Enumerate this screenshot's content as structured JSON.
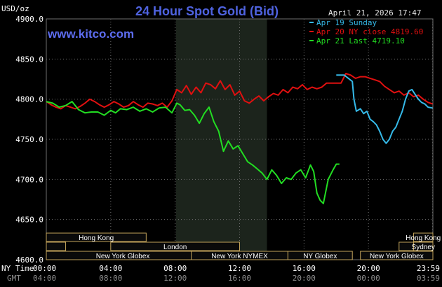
{
  "header": {
    "unit_label": "USD/oz",
    "title": "24 Hour Spot Gold (Bid)",
    "datetime": "April 21, 2026 17:47",
    "brand": "www.kitco.com"
  },
  "time_row_labels": {
    "ny": "NY Time",
    "gmt": "GMT"
  },
  "colors": {
    "background": "#000000",
    "grid": "#6e6e6e",
    "highlight_band": "#1c241c",
    "series_sunday": "#35b9e8",
    "series_nyclose": "#e01010",
    "series_last": "#22dd22",
    "market_box_fill": "#0a0a0a",
    "market_box_stroke": "#c2a35a",
    "title": "#4f63e0"
  },
  "markets": [
    {
      "name": "Hong Kong",
      "start": 0,
      "end": 6.2,
      "row": 0
    },
    {
      "name": "",
      "start": 0,
      "end": 1.2,
      "row": 1
    },
    {
      "name": "London",
      "start": 4.0,
      "end": 12.0,
      "row": 1
    },
    {
      "name": "New York Globex",
      "start": 0,
      "end": 9.5,
      "row": 2
    },
    {
      "name": "New York NYMEX",
      "start": 9.0,
      "end": 15.0,
      "row": 2
    },
    {
      "name": "NY Globex",
      "start": 15.0,
      "end": 19.0,
      "row": 2
    },
    {
      "name": "Hong Kong",
      "start": 22.8,
      "end": 24.0,
      "row": 0
    },
    {
      "name": "",
      "start": 21.9,
      "end": 22.8,
      "row": 1
    },
    {
      "name": "Sydney",
      "start": 22.8,
      "end": 24.0,
      "row": 1
    },
    {
      "name": "New York Globex",
      "start": 19.5,
      "end": 24.0,
      "row": 2
    }
  ],
  "chart_data": {
    "type": "line",
    "title": "24 Hour Spot Gold (Bid)",
    "ylabel": "USD/oz",
    "ylim": [
      4600,
      4900
    ],
    "yticks": [
      4600.0,
      4650.0,
      4700.0,
      4750.0,
      4800.0,
      4850.0,
      4900.0
    ],
    "ytick_labels": [
      "4600.0",
      "4650.0",
      "4700.0",
      "4750.0",
      "4800.0",
      "4850.0",
      "4900.0"
    ],
    "xlim": [
      0,
      24
    ],
    "xticks": [
      0,
      4,
      8,
      12,
      16,
      20,
      23.983
    ],
    "xtick_labels_ny": [
      "00:00",
      "04:00",
      "08:00",
      "12:00",
      "16:00",
      "20:00",
      "23:59"
    ],
    "xtick_labels_gmt": [
      "04:00",
      "08:00",
      "12:00",
      "16:00",
      "20:00",
      "00:00",
      "03:59"
    ],
    "highlight_range": [
      8.05,
      13.7
    ],
    "grid": true,
    "legend_position": "top-right",
    "series": [
      {
        "name": "Apr 19 Sunday",
        "color": "#35b9e8",
        "x": [
          18.0,
          18.5,
          19.0,
          19.1,
          19.25,
          19.5,
          19.7,
          19.9,
          20.1,
          20.3,
          20.5,
          20.7,
          20.9,
          21.1,
          21.3,
          21.5,
          21.7,
          21.9,
          22.1,
          22.3,
          22.5,
          22.7,
          22.9,
          23.1,
          23.3,
          23.5,
          23.7,
          23.983
        ],
        "y": [
          4830,
          4830,
          4822,
          4800,
          4785,
          4788,
          4782,
          4785,
          4775,
          4772,
          4768,
          4760,
          4750,
          4745,
          4750,
          4760,
          4765,
          4775,
          4785,
          4800,
          4810,
          4812,
          4806,
          4800,
          4796,
          4794,
          4790,
          4789
        ]
      },
      {
        "name": "Apr 20 NY close 4819.60",
        "color": "#e01010",
        "x": [
          0.0,
          0.3,
          0.6,
          0.9,
          1.2,
          1.5,
          1.8,
          2.1,
          2.4,
          2.7,
          3.0,
          3.3,
          3.6,
          3.9,
          4.2,
          4.5,
          4.8,
          5.1,
          5.4,
          5.7,
          6.0,
          6.3,
          6.6,
          6.9,
          7.2,
          7.5,
          7.8,
          8.1,
          8.4,
          8.7,
          9.0,
          9.3,
          9.6,
          9.9,
          10.2,
          10.5,
          10.8,
          11.1,
          11.4,
          11.7,
          12.0,
          12.3,
          12.6,
          12.9,
          13.2,
          13.5,
          13.8,
          14.1,
          14.4,
          14.7,
          15.0,
          15.3,
          15.6,
          15.9,
          16.2,
          16.5,
          16.8,
          17.1,
          17.4,
          17.7,
          18.0,
          18.3,
          18.6,
          18.9,
          19.2,
          19.5,
          19.8,
          20.1,
          20.4,
          20.7,
          21.0,
          21.3,
          21.6,
          21.9,
          22.2,
          22.5,
          22.8,
          23.1,
          23.4,
          23.7,
          23.983
        ],
        "y": [
          4797,
          4793,
          4790,
          4788,
          4792,
          4790,
          4788,
          4791,
          4795,
          4800,
          4797,
          4793,
          4790,
          4793,
          4797,
          4794,
          4790,
          4792,
          4797,
          4793,
          4790,
          4795,
          4794,
          4792,
          4795,
          4790,
          4798,
          4812,
          4808,
          4817,
          4806,
          4815,
          4808,
          4820,
          4818,
          4813,
          4823,
          4812,
          4818,
          4805,
          4810,
          4798,
          4795,
          4800,
          4804,
          4798,
          4803,
          4807,
          4805,
          4812,
          4808,
          4815,
          4813,
          4818,
          4812,
          4815,
          4813,
          4815,
          4820,
          4820,
          4820,
          4820,
          4832,
          4830,
          4826,
          4828,
          4828,
          4826,
          4824,
          4822,
          4816,
          4812,
          4808,
          4810,
          4805,
          4808,
          4803,
          4805,
          4800,
          4796,
          4794
        ]
      },
      {
        "name": "Apr 21 Last 4719.10",
        "color": "#22dd22",
        "x": [
          0.0,
          0.4,
          0.8,
          1.2,
          1.6,
          2.0,
          2.4,
          2.8,
          3.2,
          3.6,
          4.0,
          4.3,
          4.6,
          5.0,
          5.4,
          5.8,
          6.2,
          6.6,
          7.0,
          7.4,
          7.8,
          8.1,
          8.3,
          8.6,
          8.9,
          9.2,
          9.5,
          9.8,
          10.1,
          10.4,
          10.7,
          11.0,
          11.3,
          11.6,
          11.9,
          12.2,
          12.5,
          12.8,
          13.1,
          13.4,
          13.7,
          14.0,
          14.3,
          14.6,
          14.9,
          15.2,
          15.5,
          15.8,
          16.1,
          16.4,
          16.6,
          16.8,
          17.0,
          17.2,
          17.5,
          17.8,
          18.0,
          18.2
        ],
        "y": [
          4797,
          4795,
          4790,
          4792,
          4797,
          4787,
          4783,
          4784,
          4784,
          4780,
          4786,
          4783,
          4788,
          4787,
          4790,
          4785,
          4788,
          4784,
          4789,
          4790,
          4783,
          4795,
          4793,
          4786,
          4787,
          4780,
          4770,
          4782,
          4790,
          4772,
          4760,
          4735,
          4748,
          4738,
          4742,
          4732,
          4722,
          4718,
          4713,
          4708,
          4700,
          4712,
          4705,
          4695,
          4702,
          4700,
          4708,
          4712,
          4702,
          4718,
          4710,
          4683,
          4674,
          4670,
          4700,
          4712,
          4719,
          4719
        ]
      }
    ]
  }
}
